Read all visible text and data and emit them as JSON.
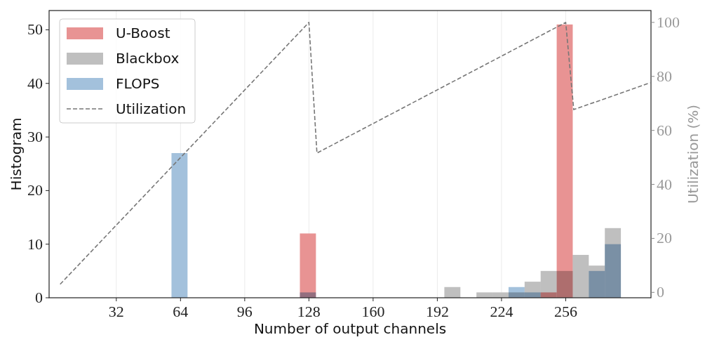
{
  "chart_data": {
    "type": "histogram",
    "xlabel": "Number of output channels",
    "ylabel": "Histogram",
    "y2label": "Utilization (%)",
    "bins": [
      59.5,
      67.5,
      75.5,
      83.5,
      91.5,
      99.5,
      107.5,
      115.5,
      123.5,
      131.5,
      139.5,
      147.5,
      155.5,
      163.5,
      171.5,
      179.5,
      187.5,
      195.5,
      203.5,
      211.5,
      219.5,
      227.5,
      235.5,
      243.5,
      251.5,
      259.5,
      267.5,
      275.5,
      283.5
    ],
    "series": [
      {
        "name": "U-Boost",
        "color": "#e89393",
        "values": [
          0,
          0,
          0,
          0,
          0,
          0,
          0,
          0,
          12,
          0,
          0,
          0,
          0,
          0,
          0,
          0,
          0,
          0,
          0,
          0,
          0,
          0,
          0,
          1,
          51,
          0,
          0,
          0
        ]
      },
      {
        "name": "Blackbox",
        "color": "#bfbfbf",
        "values": [
          0,
          0,
          0,
          0,
          0,
          0,
          0,
          0,
          0,
          0,
          0,
          0,
          0,
          0,
          0,
          0,
          0,
          2,
          0,
          1,
          1,
          1,
          3,
          5,
          5,
          8,
          6,
          13
        ]
      },
      {
        "name": "FLOPS",
        "color": "#a3c1dc",
        "values": [
          27,
          0,
          0,
          0,
          0,
          0,
          0,
          0,
          1,
          0,
          0,
          0,
          0,
          0,
          0,
          0,
          0,
          0,
          0,
          0,
          0,
          2,
          1,
          0,
          0,
          0,
          5,
          10
        ]
      },
      {
        "name": "Utilization",
        "type": "line",
        "axis": "y2",
        "color": "#777777",
        "line_style": "dashed",
        "marker": "none",
        "x": [
          4,
          128,
          132,
          256,
          260,
          298
        ],
        "values": [
          3,
          100,
          51.6,
          100,
          67.7,
          77.6
        ]
      }
    ],
    "xlim": [
      -1.5,
      298.5
    ],
    "xticks": [
      32,
      64,
      96,
      128,
      160,
      192,
      224,
      256
    ],
    "ylim": [
      0,
      53.6
    ],
    "yticks": [
      0,
      10,
      20,
      30,
      40,
      50
    ],
    "y2lim": [
      -2,
      104.4
    ],
    "y2ticks": [
      0,
      20,
      40,
      60,
      80,
      100
    ],
    "grid": "x",
    "legend": "top left"
  }
}
